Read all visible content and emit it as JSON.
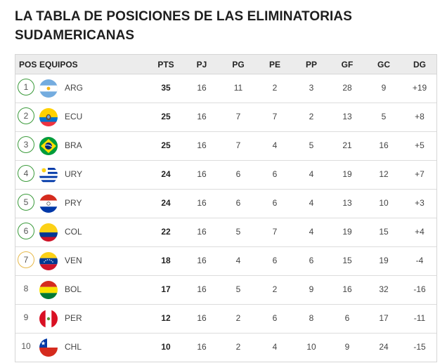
{
  "title": "LA TABLA DE POSICIONES DE LAS ELIMINATORIAS SUDAMERICANAS",
  "headers": {
    "pos": "POS",
    "equipos": "EQUIPOS",
    "pts": "PTS",
    "pj": "PJ",
    "pg": "PG",
    "pe": "PE",
    "pp": "PP",
    "gf": "GF",
    "gc": "GC",
    "dg": "DG"
  },
  "colors": {
    "qualify": "#3a9a3a",
    "playoff": "#e7b94a",
    "header_bg": "#ececec"
  },
  "rows": [
    {
      "pos": "1",
      "team": "ARG",
      "flag": "argentina-flag-icon",
      "zone": "qualify",
      "pts": "35",
      "pj": "16",
      "pg": "11",
      "pe": "2",
      "pp": "3",
      "gf": "28",
      "gc": "9",
      "dg": "+19"
    },
    {
      "pos": "2",
      "team": "ECU",
      "flag": "ecuador-flag-icon",
      "zone": "qualify",
      "pts": "25",
      "pj": "16",
      "pg": "7",
      "pe": "7",
      "pp": "2",
      "gf": "13",
      "gc": "5",
      "dg": "+8"
    },
    {
      "pos": "3",
      "team": "BRA",
      "flag": "brazil-flag-icon",
      "zone": "qualify",
      "pts": "25",
      "pj": "16",
      "pg": "7",
      "pe": "4",
      "pp": "5",
      "gf": "21",
      "gc": "16",
      "dg": "+5"
    },
    {
      "pos": "4",
      "team": "URY",
      "flag": "uruguay-flag-icon",
      "zone": "qualify",
      "pts": "24",
      "pj": "16",
      "pg": "6",
      "pe": "6",
      "pp": "4",
      "gf": "19",
      "gc": "12",
      "dg": "+7"
    },
    {
      "pos": "5",
      "team": "PRY",
      "flag": "paraguay-flag-icon",
      "zone": "qualify",
      "pts": "24",
      "pj": "16",
      "pg": "6",
      "pe": "6",
      "pp": "4",
      "gf": "13",
      "gc": "10",
      "dg": "+3"
    },
    {
      "pos": "6",
      "team": "COL",
      "flag": "colombia-flag-icon",
      "zone": "qualify",
      "pts": "22",
      "pj": "16",
      "pg": "5",
      "pe": "7",
      "pp": "4",
      "gf": "19",
      "gc": "15",
      "dg": "+4"
    },
    {
      "pos": "7",
      "team": "VEN",
      "flag": "venezuela-flag-icon",
      "zone": "playoff",
      "pts": "18",
      "pj": "16",
      "pg": "4",
      "pe": "6",
      "pp": "6",
      "gf": "15",
      "gc": "19",
      "dg": "-4"
    },
    {
      "pos": "8",
      "team": "BOL",
      "flag": "bolivia-flag-icon",
      "zone": "none",
      "pts": "17",
      "pj": "16",
      "pg": "5",
      "pe": "2",
      "pp": "9",
      "gf": "16",
      "gc": "32",
      "dg": "-16"
    },
    {
      "pos": "9",
      "team": "PER",
      "flag": "peru-flag-icon",
      "zone": "none",
      "pts": "12",
      "pj": "16",
      "pg": "2",
      "pe": "6",
      "pp": "8",
      "gf": "6",
      "gc": "17",
      "dg": "-11"
    },
    {
      "pos": "10",
      "team": "CHL",
      "flag": "chile-flag-icon",
      "zone": "none",
      "pts": "10",
      "pj": "16",
      "pg": "2",
      "pe": "4",
      "pp": "10",
      "gf": "9",
      "gc": "24",
      "dg": "-15"
    }
  ]
}
